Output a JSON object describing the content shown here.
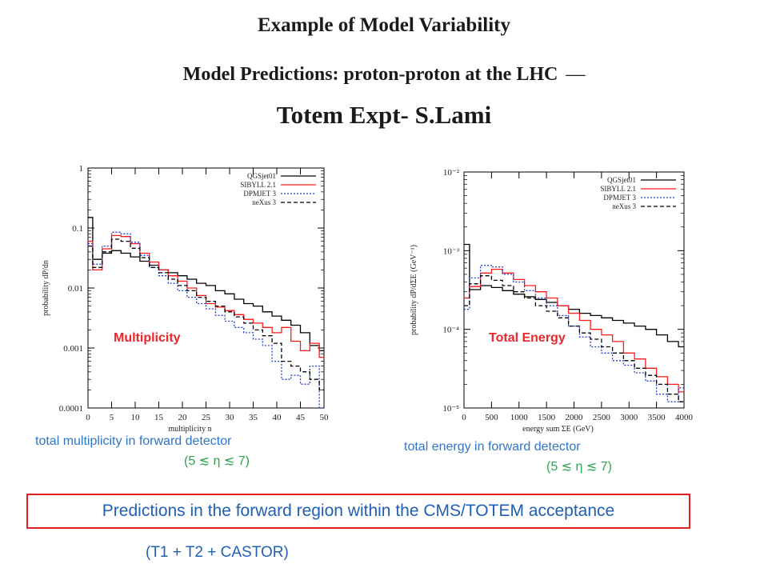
{
  "header": {
    "title": "Example of Model Variability",
    "subtitle": "Model Predictions: proton-proton at the LHC",
    "dash": "—",
    "author_line": "Totem Expt- S.Lami"
  },
  "legend_entries": [
    {
      "name": "QGSjet01",
      "color": "#000000",
      "dash": "solid"
    },
    {
      "name": "SIBYLL 2.1",
      "color": "#ff1a1a",
      "dash": "solid"
    },
    {
      "name": "DPMJET 3",
      "color": "#1f3fd6",
      "dash": "dotted"
    },
    {
      "name": "neXus 3",
      "color": "#000000",
      "dash": "dashed"
    }
  ],
  "overlay": {
    "multiplicity_label": "Multiplicity",
    "energy_label": "Total Energy"
  },
  "captions": {
    "left": "total multiplicity in forward detector",
    "right": "total energy in forward detector",
    "eta_range": "(5 ≲ η ≲ 7)"
  },
  "box_text": "Predictions in the forward region within the CMS/TOTEM acceptance",
  "footer": "(T1 + T2 + CASTOR)",
  "chart_data": [
    {
      "type": "line",
      "title": "",
      "xlabel": "multiplicity n",
      "ylabel": "probability dP/dn",
      "xlim": [
        0,
        50
      ],
      "ylim": [
        0.0001,
        1
      ],
      "yscale": "log",
      "x_ticks": [
        0,
        5,
        10,
        15,
        20,
        25,
        30,
        35,
        40,
        45,
        50
      ],
      "y_ticks": [
        {
          "v": 1,
          "label": "1"
        },
        {
          "v": 0.1,
          "label": "0.1"
        },
        {
          "v": 0.01,
          "label": "0.01"
        },
        {
          "v": 0.001,
          "label": "0.001"
        },
        {
          "v": 0.0001,
          "label": "0.0001"
        }
      ],
      "legend": "top-right",
      "x": [
        0,
        2,
        4,
        6,
        8,
        10,
        12,
        14,
        16,
        18,
        20,
        22,
        24,
        26,
        28,
        30,
        32,
        34,
        36,
        38,
        40,
        42,
        44,
        46,
        48,
        50
      ],
      "series": [
        {
          "name": "QGSjet01",
          "color": "#000000",
          "dash": "solid",
          "values": [
            0.15,
            0.03,
            0.038,
            0.042,
            0.038,
            0.033,
            0.028,
            0.024,
            0.02,
            0.018,
            0.016,
            0.014,
            0.012,
            0.011,
            0.009,
            0.008,
            0.0065,
            0.0055,
            0.005,
            0.004,
            0.0034,
            0.0029,
            0.0024,
            0.0018,
            0.0011,
            0.0009
          ]
        },
        {
          "name": "SIBYLL 2.1",
          "color": "#ff1a1a",
          "dash": "solid",
          "values": [
            0.06,
            0.02,
            0.045,
            0.075,
            0.072,
            0.055,
            0.038,
            0.027,
            0.02,
            0.016,
            0.013,
            0.01,
            0.0075,
            0.0055,
            0.0048,
            0.0042,
            0.0036,
            0.003,
            0.0026,
            0.0022,
            0.0018,
            0.0022,
            0.0013,
            0.0009,
            0.0012,
            0.0007
          ]
        },
        {
          "name": "DPMJET 3",
          "color": "#1f3fd6",
          "dash": "dotted",
          "values": [
            0.055,
            0.025,
            0.05,
            0.085,
            0.08,
            0.058,
            0.035,
            0.022,
            0.016,
            0.012,
            0.009,
            0.007,
            0.0055,
            0.0045,
            0.0035,
            0.0028,
            0.0022,
            0.0018,
            0.0014,
            0.0011,
            0.0006,
            0.0003,
            0.00035,
            0.00025,
            0.0005,
            0.0001
          ]
        },
        {
          "name": "neXus 3",
          "color": "#000000",
          "dash": "dashed",
          "values": [
            0.05,
            0.022,
            0.04,
            0.065,
            0.06,
            0.046,
            0.032,
            0.022,
            0.018,
            0.014,
            0.011,
            0.009,
            0.007,
            0.006,
            0.005,
            0.004,
            0.0033,
            0.0026,
            0.002,
            0.0016,
            0.0012,
            0.0006,
            0.0005,
            0.0004,
            0.0003,
            0.0002
          ]
        }
      ]
    },
    {
      "type": "line",
      "title": "",
      "xlabel": "energy sum ΣE   (GeV)",
      "ylabel": "probability dP/dΣE   (GeV⁻¹)",
      "xlim": [
        0,
        4000
      ],
      "ylim": [
        1e-05,
        0.01
      ],
      "yscale": "log",
      "x_ticks": [
        0,
        500,
        1000,
        1500,
        2000,
        2500,
        3000,
        3500,
        4000
      ],
      "y_ticks": [
        {
          "v": 0.01,
          "label": "10⁻²"
        },
        {
          "v": 0.001,
          "label": "10⁻³"
        },
        {
          "v": 0.0001,
          "label": "10⁻⁴"
        },
        {
          "v": 1e-05,
          "label": "10⁻⁵"
        }
      ],
      "legend": "top-right",
      "x": [
        0,
        200,
        400,
        600,
        800,
        1000,
        1200,
        1400,
        1600,
        1800,
        2000,
        2200,
        2400,
        2600,
        2800,
        3000,
        3200,
        3400,
        3600,
        3800,
        4000
      ],
      "series": [
        {
          "name": "QGSjet01",
          "color": "#000000",
          "dash": "solid",
          "values": [
            0.0012,
            0.00032,
            0.00036,
            0.00034,
            0.00031,
            0.00028,
            0.00026,
            0.00024,
            0.00022,
            0.0002,
            0.00018,
            0.00016,
            0.00015,
            0.00014,
            0.00013,
            0.00012,
            0.00011,
            0.0001,
            8.5e-05,
            7e-05,
            6e-05
          ]
        },
        {
          "name": "SIBYLL 2.1",
          "color": "#ff1a1a",
          "dash": "solid",
          "values": [
            0.00025,
            0.00035,
            0.00052,
            0.00058,
            0.00052,
            0.00043,
            0.00036,
            0.0003,
            0.00025,
            0.0002,
            0.00016,
            0.00013,
            0.0001,
            8.5e-05,
            7e-05,
            5e-05,
            4.2e-05,
            3.2e-05,
            2.5e-05,
            2e-05,
            1.6e-05
          ]
        },
        {
          "name": "DPMJET 3",
          "color": "#1f3fd6",
          "dash": "dotted",
          "values": [
            0.00018,
            0.00045,
            0.00065,
            0.00062,
            0.0005,
            0.0004,
            0.00031,
            0.00025,
            0.0002,
            0.00015,
            0.00011,
            8e-05,
            6e-05,
            5e-05,
            4e-05,
            3.5e-05,
            2.8e-05,
            2.2e-05,
            1.5e-05,
            1.2e-05,
            1.8e-05
          ]
        },
        {
          "name": "neXus 3",
          "color": "#000000",
          "dash": "dashed",
          "values": [
            0.0002,
            0.00038,
            0.00048,
            0.00042,
            0.00036,
            0.0003,
            0.00025,
            0.0002,
            0.00017,
            0.00014,
            0.00011,
            9e-05,
            7.5e-05,
            6e-05,
            5e-05,
            4e-05,
            3.2e-05,
            2.6e-05,
            2e-05,
            1.5e-05,
            1.2e-05
          ]
        }
      ]
    }
  ]
}
